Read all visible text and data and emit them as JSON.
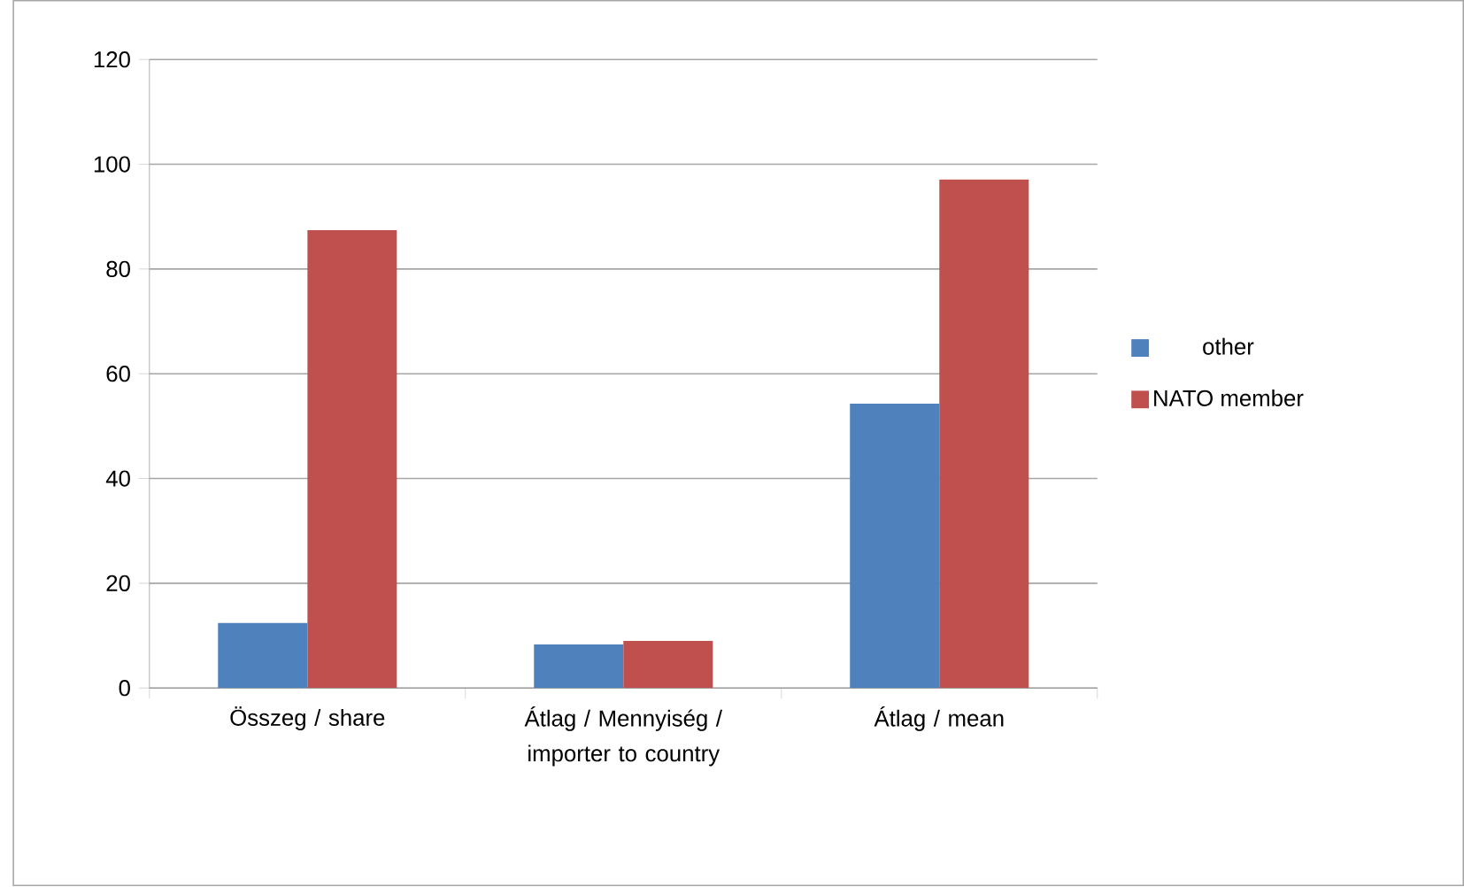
{
  "chart_data": {
    "type": "bar",
    "categories": [
      "Összeg / share",
      "Átlag / Mennyiség / importer to country",
      "Átlag / mean"
    ],
    "series": [
      {
        "name": "other",
        "color": "#4f81bd",
        "values": [
          12.4,
          8.3,
          54.3
        ]
      },
      {
        "name": "NATO member",
        "color": "#c0504d",
        "values": [
          87.4,
          9.0,
          97.1
        ]
      }
    ],
    "ylim": [
      0,
      120
    ],
    "yticks": [
      0,
      20,
      40,
      60,
      80,
      100,
      120
    ],
    "grid": "y",
    "legend": "right"
  }
}
